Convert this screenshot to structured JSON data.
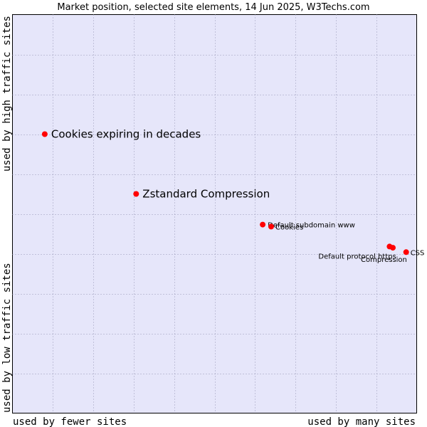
{
  "chart_data": {
    "type": "scatter",
    "title": "Market position, selected site elements, 14 Jun 2025, W3Techs.com",
    "x_axis": {
      "low_label": "used by fewer sites",
      "high_label": "used by many sites",
      "range": [
        0,
        100
      ]
    },
    "y_axis": {
      "low_label": "used by low traffic sites",
      "high_label": "used by high traffic sites",
      "range": [
        0,
        100
      ]
    },
    "grid": true,
    "points": [
      {
        "name": "Cookies expiring in decades",
        "x": 8,
        "y": 70,
        "label_size": "large"
      },
      {
        "name": "Zstandard Compression",
        "x": 30.6,
        "y": 55,
        "label_size": "large"
      },
      {
        "name": "Default subdomain www",
        "x": 61.9,
        "y": 47.3,
        "label_size": "small"
      },
      {
        "name": "Cookies",
        "x": 64,
        "y": 46.8,
        "label_size": "small"
      },
      {
        "name": "Default protocol https",
        "x": 93.3,
        "y": 41.8,
        "label_size": "small"
      },
      {
        "name": "Compression",
        "x": 94.1,
        "y": 41.5,
        "label_size": "small"
      },
      {
        "name": "CSS",
        "x": 97.4,
        "y": 40.4,
        "label_size": "small"
      }
    ],
    "colors": {
      "plot_background": "#e6e6fa",
      "border": "#000000",
      "marker": "#ff0000"
    }
  }
}
